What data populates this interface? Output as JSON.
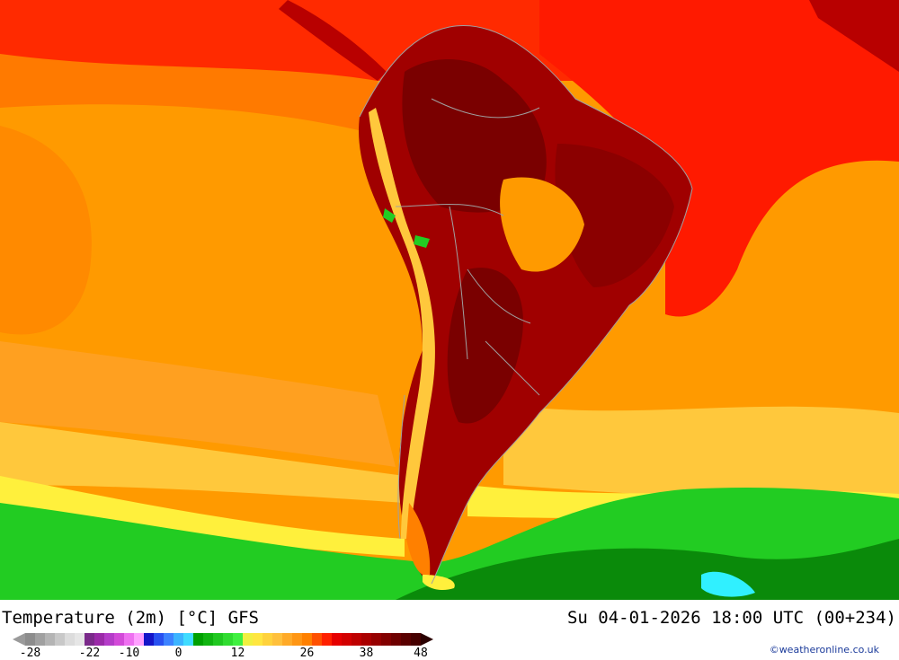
{
  "map": {
    "title": "Temperature (2m) [°C] GFS",
    "valid_time": "Su 04-01-2026 18:00 UTC (00+234)",
    "credit": "©weatheronline.co.uk",
    "region": "South America",
    "colors": {
      "extreme_hot": "#8b0000",
      "very_hot": "#b80000",
      "hot": "#ff1a00",
      "warm": "#ff8c00",
      "mild": "#ffa500",
      "temperate": "#ffc83c",
      "cool": "#fff03c",
      "cold": "#22cc22",
      "colder": "#0a8a0a",
      "ice": "#30f0ff",
      "borders": "#a0a0a0"
    }
  },
  "legend": {
    "ticks": [
      {
        "label": "-28",
        "index": 0
      },
      {
        "label": "-22",
        "index": 6
      },
      {
        "label": "-10",
        "index": 10
      },
      {
        "label": "0",
        "index": 15
      },
      {
        "label": "12",
        "index": 21
      },
      {
        "label": "26",
        "index": 28
      },
      {
        "label": "38",
        "index": 34
      },
      {
        "label": "48",
        "index": 39
      }
    ],
    "swatches": [
      "#8c8c8c",
      "#a0a0a0",
      "#b4b4b4",
      "#c8c8c8",
      "#dcdcdc",
      "#e6e6e6",
      "#7a2a8a",
      "#9a2aa8",
      "#b43cc8",
      "#d24ad8",
      "#ee70f0",
      "#ffa0ff",
      "#1414c8",
      "#2850f0",
      "#3c82ff",
      "#3cb4ff",
      "#40dcff",
      "#00a000",
      "#10b410",
      "#20c820",
      "#30dc30",
      "#40f040",
      "#f0f040",
      "#ffe640",
      "#ffd23c",
      "#ffc03c",
      "#ffaa28",
      "#ff9614",
      "#ff8000",
      "#ff5000",
      "#ff2000",
      "#e60000",
      "#d20000",
      "#be0000",
      "#aa0000",
      "#960000",
      "#820000",
      "#6e0000",
      "#5a0000",
      "#460000"
    ]
  }
}
